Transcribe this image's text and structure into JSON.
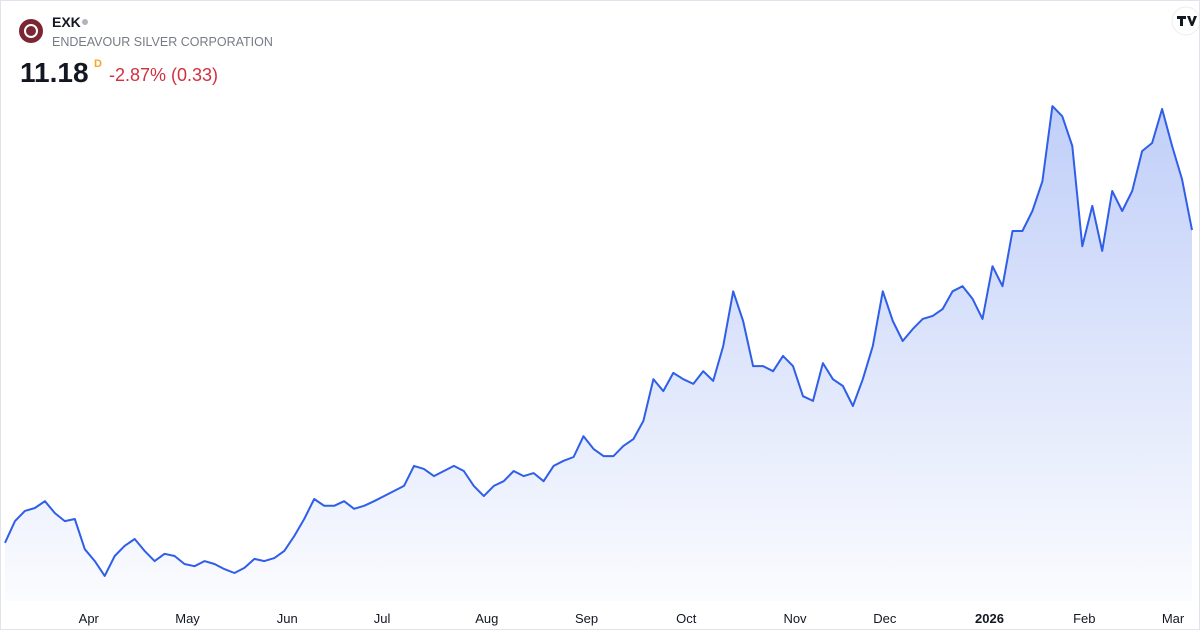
{
  "header": {
    "symbol": "EXK",
    "name": "ENDEAVOUR SILVER CORPORATION",
    "price": "11.18",
    "interval": "D",
    "change": "-2.87% (0.33)"
  },
  "chart_data": {
    "type": "area",
    "color": "#2f5ee8",
    "values": [
      3.82,
      4.33,
      4.57,
      4.64,
      4.8,
      4.52,
      4.33,
      4.38,
      3.67,
      3.39,
      3.04,
      3.51,
      3.75,
      3.91,
      3.63,
      3.39,
      3.56,
      3.51,
      3.32,
      3.27,
      3.39,
      3.32,
      3.2,
      3.11,
      3.23,
      3.44,
      3.39,
      3.46,
      3.63,
      3.98,
      4.38,
      4.85,
      4.69,
      4.69,
      4.8,
      4.62,
      4.69,
      4.8,
      4.92,
      5.04,
      5.16,
      5.63,
      5.56,
      5.39,
      5.51,
      5.63,
      5.51,
      5.16,
      4.92,
      5.16,
      5.27,
      5.51,
      5.39,
      5.46,
      5.27,
      5.63,
      5.75,
      5.84,
      6.33,
      6.03,
      5.86,
      5.86,
      6.1,
      6.26,
      6.69,
      7.67,
      7.39,
      7.82,
      7.67,
      7.56,
      7.86,
      7.63,
      8.45,
      9.74,
      9.04,
      7.98,
      7.98,
      7.86,
      8.22,
      7.98,
      7.27,
      7.16,
      8.05,
      7.67,
      7.51,
      7.04,
      7.67,
      8.45,
      9.74,
      9.04,
      8.57,
      8.85,
      9.09,
      9.16,
      9.32,
      9.74,
      9.86,
      9.56,
      9.09,
      10.33,
      9.86,
      11.16,
      11.16,
      11.63,
      12.33,
      14.1,
      13.86,
      13.16,
      10.8,
      11.75,
      10.69,
      12.1,
      11.63,
      12.1,
      13.04,
      13.23,
      14.03,
      13.16,
      12.38,
      11.18
    ],
    "xlim": [
      0,
      119
    ],
    "ylim": [
      2.45,
      14.69
    ],
    "xticks": [
      {
        "value": 8.4,
        "label": "Apr"
      },
      {
        "value": 18.3,
        "label": "May"
      },
      {
        "value": 28.3,
        "label": "Jun"
      },
      {
        "value": 37.8,
        "label": "Jul"
      },
      {
        "value": 48.3,
        "label": "Aug"
      },
      {
        "value": 58.3,
        "label": "Sep"
      },
      {
        "value": 68.3,
        "label": "Oct"
      },
      {
        "value": 79.2,
        "label": "Nov"
      },
      {
        "value": 88.2,
        "label": "Dec"
      },
      {
        "value": 98.7,
        "label": "2026"
      },
      {
        "value": 108.2,
        "label": "Feb"
      },
      {
        "value": 117.1,
        "label": "Mar"
      }
    ]
  }
}
